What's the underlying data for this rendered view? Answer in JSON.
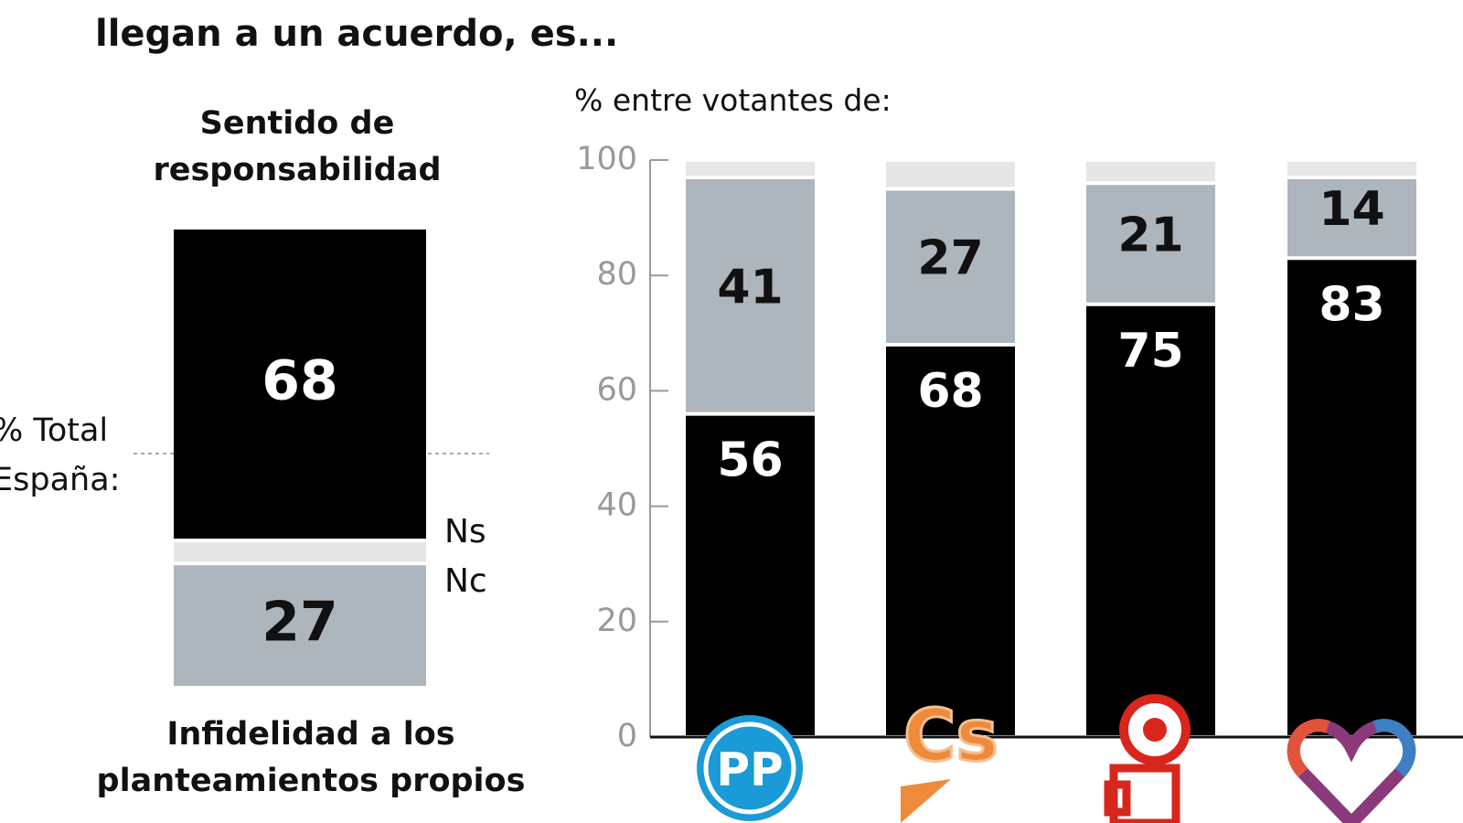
{
  "title": "llegan a un acuerdo, es...",
  "chart_data": [
    {
      "type": "stacked_bar",
      "axis_label": "% Total España:",
      "series": [
        {
          "name": "Sentido de responsabilidad",
          "color": "#000000",
          "values": [
            68
          ]
        },
        {
          "name": "Ns Nc",
          "color": "#e6e6e6",
          "values": [
            5
          ]
        },
        {
          "name": "Infidelidad a los planteamientos propios",
          "color": "#adb5bd",
          "values": [
            27
          ]
        }
      ]
    },
    {
      "type": "stacked_bar",
      "subtitle": "% entre votantes de:",
      "categories": [
        "PP",
        "Cs",
        null,
        null
      ],
      "ylim": [
        0,
        100
      ],
      "yticks": [
        0,
        20,
        40,
        60,
        80,
        100
      ],
      "series": [
        {
          "color": "#000000",
          "values": [
            56,
            68,
            75,
            83
          ]
        },
        {
          "color": "#adb5bd",
          "values": [
            41,
            27,
            21,
            14
          ]
        },
        {
          "color": "#e6e6e6",
          "values": [
            3,
            5,
            4,
            3
          ]
        }
      ]
    }
  ]
}
